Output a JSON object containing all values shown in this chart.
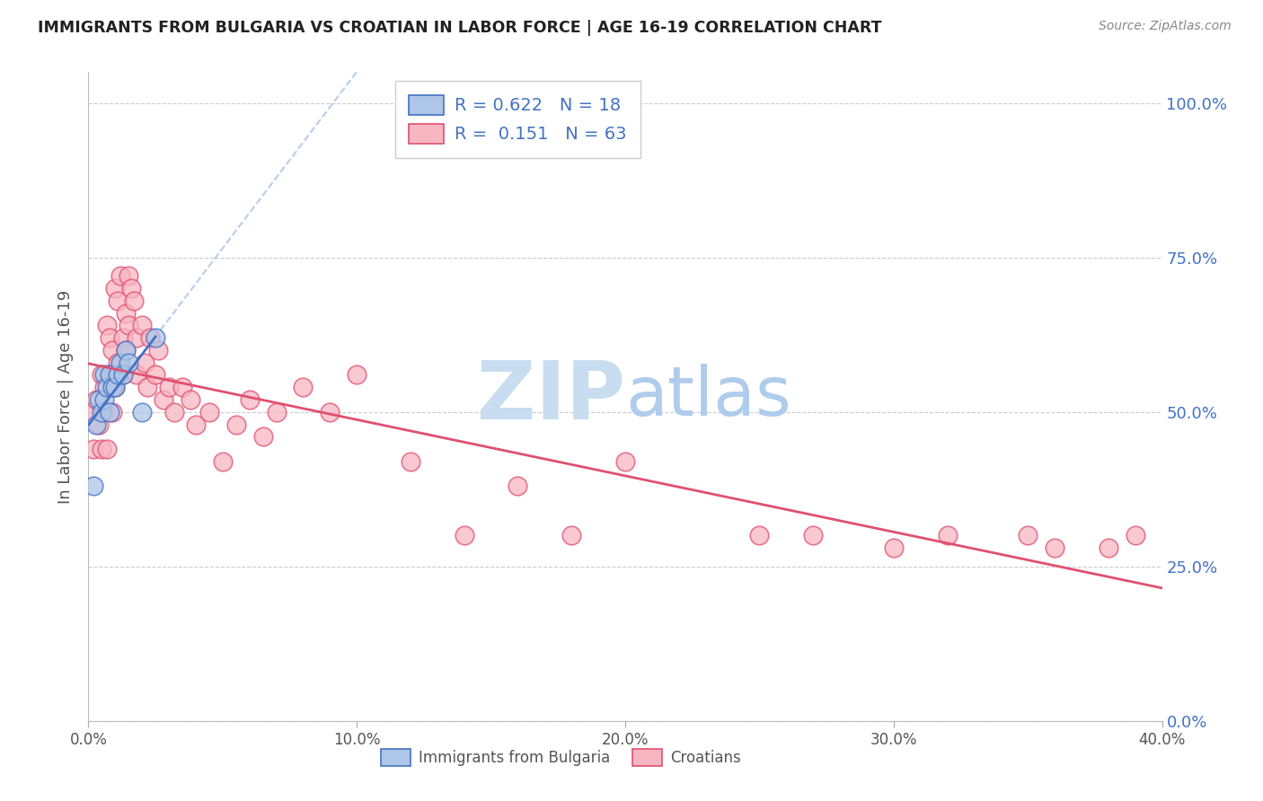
{
  "title": "IMMIGRANTS FROM BULGARIA VS CROATIAN IN LABOR FORCE | AGE 16-19 CORRELATION CHART",
  "source": "Source: ZipAtlas.com",
  "ylabel": "In Labor Force | Age 16-19",
  "xlim": [
    0.0,
    0.4
  ],
  "ylim": [
    0.0,
    1.05
  ],
  "xticks": [
    0.0,
    0.1,
    0.2,
    0.3,
    0.4
  ],
  "xtick_labels": [
    "0.0%",
    "10.0%",
    "20.0%",
    "30.0%",
    "40.0%"
  ],
  "yticks": [
    0.0,
    0.25,
    0.5,
    0.75,
    1.0
  ],
  "ytick_labels_right": [
    "0.0%",
    "25.0%",
    "50.0%",
    "75.0%",
    "100.0%"
  ],
  "grid_color": "#cccccc",
  "background_color": "#ffffff",
  "title_color": "#222222",
  "tick_color_right": "#4472c4",
  "r_bulgaria": 0.622,
  "n_bulgaria": 18,
  "r_croatian": 0.151,
  "n_croatian": 63,
  "scatter_color_bulgaria": "#aec6e8",
  "scatter_color_croatian": "#f7b6c2",
  "scatter_edge_bulgaria": "#4472c4",
  "scatter_edge_croatian": "#e05070",
  "line_color_bulgaria": "#4472c4",
  "line_color_croatian": "#e05070",
  "diagonal_color": "#b0c8e8",
  "watermark_zip": "ZIP",
  "watermark_atlas": "atlas",
  "watermark_color_zip": "#c8ddf0",
  "watermark_color_atlas": "#b0ccec",
  "bulgaria_x": [
    0.002,
    0.003,
    0.004,
    0.005,
    0.006,
    0.006,
    0.007,
    0.008,
    0.008,
    0.009,
    0.01,
    0.011,
    0.012,
    0.013,
    0.014,
    0.015,
    0.02,
    0.025
  ],
  "bulgaria_y": [
    0.38,
    0.48,
    0.52,
    0.5,
    0.56,
    0.52,
    0.54,
    0.5,
    0.56,
    0.54,
    0.54,
    0.56,
    0.58,
    0.56,
    0.6,
    0.58,
    0.5,
    0.62
  ],
  "croatian_x": [
    0.001,
    0.002,
    0.003,
    0.004,
    0.005,
    0.005,
    0.006,
    0.006,
    0.007,
    0.007,
    0.008,
    0.008,
    0.009,
    0.009,
    0.01,
    0.01,
    0.011,
    0.011,
    0.012,
    0.013,
    0.013,
    0.014,
    0.014,
    0.015,
    0.015,
    0.016,
    0.017,
    0.018,
    0.018,
    0.02,
    0.021,
    0.022,
    0.023,
    0.025,
    0.026,
    0.028,
    0.03,
    0.032,
    0.035,
    0.038,
    0.04,
    0.045,
    0.05,
    0.055,
    0.06,
    0.065,
    0.07,
    0.08,
    0.09,
    0.1,
    0.12,
    0.14,
    0.16,
    0.18,
    0.2,
    0.25,
    0.27,
    0.3,
    0.32,
    0.35,
    0.36,
    0.38,
    0.39
  ],
  "croatian_y": [
    0.5,
    0.44,
    0.52,
    0.48,
    0.56,
    0.44,
    0.54,
    0.5,
    0.64,
    0.44,
    0.62,
    0.56,
    0.6,
    0.5,
    0.7,
    0.54,
    0.68,
    0.58,
    0.72,
    0.62,
    0.56,
    0.66,
    0.6,
    0.72,
    0.64,
    0.7,
    0.68,
    0.62,
    0.56,
    0.64,
    0.58,
    0.54,
    0.62,
    0.56,
    0.6,
    0.52,
    0.54,
    0.5,
    0.54,
    0.52,
    0.48,
    0.5,
    0.42,
    0.48,
    0.52,
    0.46,
    0.5,
    0.54,
    0.5,
    0.56,
    0.42,
    0.3,
    0.38,
    0.3,
    0.42,
    0.3,
    0.3,
    0.28,
    0.3,
    0.3,
    0.28,
    0.28,
    0.3
  ],
  "legend_text_color": "#4472c4",
  "legend_label_color": "#333333"
}
